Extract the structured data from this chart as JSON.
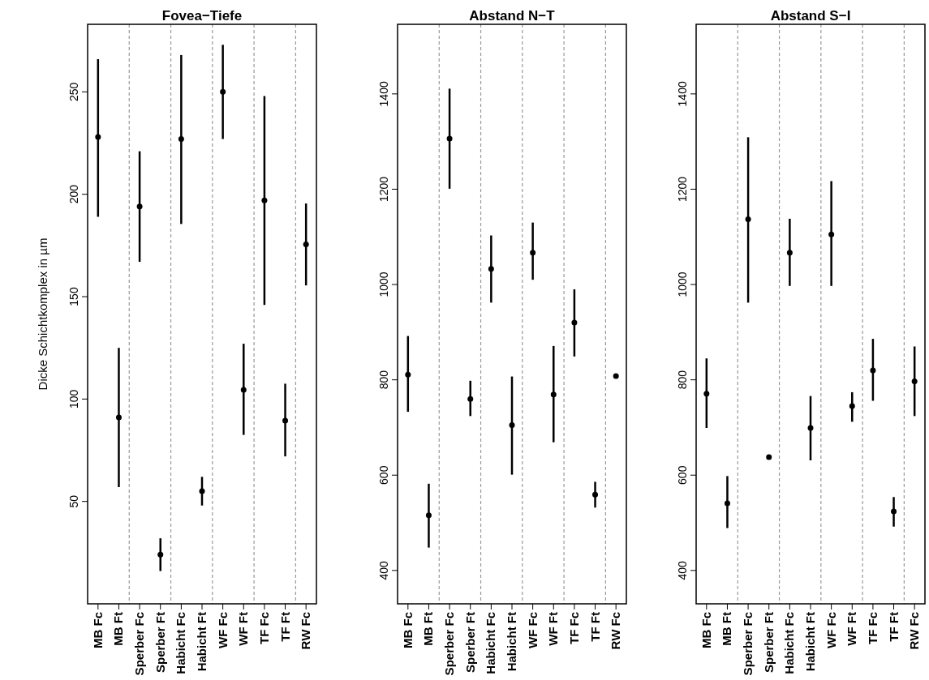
{
  "chart_data": [
    {
      "type": "scatter",
      "title": "Fovea−Tiefe",
      "ylabel": "Dicke Schichtkomplex in µm",
      "categories": [
        "MB Fc",
        "MB Ft",
        "Sperber Fc",
        "Sperber Ft",
        "Habicht Fc",
        "Habicht Ft",
        "WF Fc",
        "WF Ft",
        "TF Fc",
        "TF Ft",
        "RW Fc"
      ],
      "ylim": [
        0,
        283
      ],
      "yticks": [
        50,
        100,
        150,
        200,
        250
      ],
      "marker": "circle",
      "color": "#000000",
      "values": [
        228,
        91,
        194,
        24,
        227,
        55,
        250,
        104.5,
        197,
        89.5,
        175.5
      ],
      "errors": [
        [
          189,
          266
        ],
        [
          57,
          125
        ],
        [
          167,
          221
        ],
        [
          16,
          32
        ],
        [
          185.5,
          268
        ],
        [
          48,
          62
        ],
        [
          227,
          273
        ],
        [
          82.5,
          127
        ],
        [
          146,
          248
        ],
        [
          72,
          107.5
        ],
        [
          155.5,
          195.5
        ]
      ]
    },
    {
      "type": "scatter",
      "title": "Abstand N−T",
      "categories": [
        "MB Fc",
        "MB Ft",
        "Sperber Fc",
        "Sperber Ft",
        "Habicht Fc",
        "Habicht Ft",
        "WF Fc",
        "WF Ft",
        "TF Fc",
        "TF Ft",
        "RW Fc"
      ],
      "ylim": [
        330,
        1546
      ],
      "yticks": [
        400,
        600,
        800,
        1000,
        1200,
        1400
      ],
      "marker": "circle",
      "color": "#000000",
      "values": [
        811,
        516,
        1306,
        760,
        1033,
        705,
        1067,
        769,
        920,
        559,
        808
      ],
      "errors": [
        [
          733,
          892
        ],
        [
          448,
          582
        ],
        [
          1201,
          1411
        ],
        [
          724,
          798
        ],
        [
          962,
          1103
        ],
        [
          601,
          807
        ],
        [
          1010,
          1130
        ],
        [
          669,
          871
        ],
        [
          849,
          990
        ],
        [
          532,
          586
        ],
        null
      ]
    },
    {
      "type": "scatter",
      "title": "Abstand S−I",
      "categories": [
        "MB Fc",
        "MB Ft",
        "Sperber Fc",
        "Sperber Ft",
        "Habicht Fc",
        "Habicht Ft",
        "WF Fc",
        "WF Ft",
        "TF Fc",
        "TF Ft",
        "RW Fc"
      ],
      "ylim": [
        330,
        1546
      ],
      "yticks": [
        400,
        600,
        800,
        1000,
        1200,
        1400
      ],
      "marker": "circle",
      "color": "#000000",
      "values": [
        771,
        541,
        1137,
        638,
        1067,
        699,
        1105,
        745,
        820,
        524,
        797
      ],
      "errors": [
        [
          699,
          845
        ],
        [
          489,
          598
        ],
        [
          962,
          1309
        ],
        null,
        [
          997,
          1138
        ],
        [
          631,
          766
        ],
        [
          997,
          1217
        ],
        [
          712,
          774
        ],
        [
          756,
          886
        ],
        [
          492,
          554
        ],
        [
          724,
          870
        ]
      ]
    }
  ]
}
